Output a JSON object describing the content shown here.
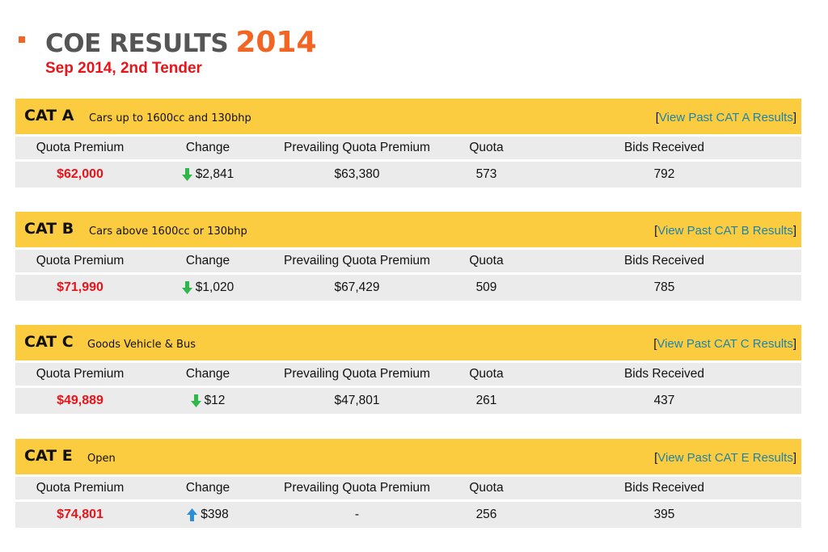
{
  "header": {
    "title": "COE RESULTS",
    "year": "2014",
    "subtitle": "Sep 2014, 2nd Tender"
  },
  "colors": {
    "accent": "#f26522",
    "subtitle": "#e8141a",
    "category_bar": "#fccc40",
    "row_bg": "#ebebeb",
    "link": "#1f83a6",
    "down_arrow": "#2fb84a",
    "up_arrow": "#2a8fd6"
  },
  "columns": {
    "quota_premium": "Quota Premium",
    "change": "Change",
    "prevailing": "Prevailing Quota Premium",
    "quota": "Quota",
    "bids": "Bids Received"
  },
  "categories": [
    {
      "name": "CAT A",
      "description": "Cars up to 1600cc and 130bhp",
      "link_open": "[",
      "link_text": "View Past CAT A Results",
      "link_close": "]",
      "quota_premium": "$62,000",
      "change_direction": "down",
      "change_icon": "arrow-down-icon",
      "change": "$2,841",
      "prevailing": "$63,380",
      "quota": "573",
      "bids": "792"
    },
    {
      "name": "CAT B",
      "description": "Cars above 1600cc or 130bhp",
      "link_open": "[",
      "link_text": "View Past CAT B Results",
      "link_close": "]",
      "quota_premium": "$71,990",
      "change_direction": "down",
      "change_icon": "arrow-down-icon",
      "change": "$1,020",
      "prevailing": "$67,429",
      "quota": "509",
      "bids": "785"
    },
    {
      "name": "CAT C",
      "description": "Goods Vehicle & Bus",
      "link_open": "[",
      "link_text": "View Past CAT C Results",
      "link_close": "]",
      "quota_premium": "$49,889",
      "change_direction": "down",
      "change_icon": "arrow-down-icon",
      "change": "$12",
      "prevailing": "$47,801",
      "quota": "261",
      "bids": "437"
    },
    {
      "name": "CAT E",
      "description": "Open",
      "link_open": "[",
      "link_text": "View Past CAT E Results",
      "link_close": "]",
      "quota_premium": "$74,801",
      "change_direction": "up",
      "change_icon": "arrow-up-icon",
      "change": "$398",
      "prevailing": "-",
      "quota": "256",
      "bids": "395"
    }
  ]
}
